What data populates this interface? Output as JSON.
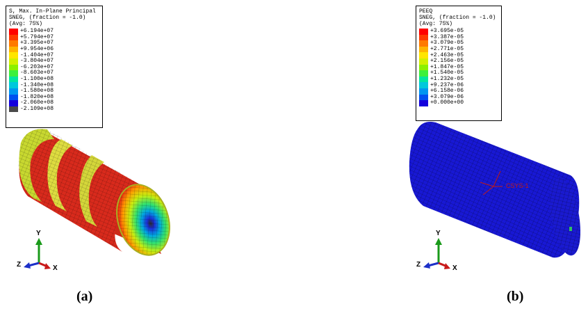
{
  "panel_a": {
    "legend": {
      "title_lines": [
        "S, Max. In-Plane Principal",
        "SNEG, (fraction = -1.0)",
        "(Avg: 75%)"
      ],
      "entries": [
        {
          "color": "#ff0000",
          "value": "+6.194e+07"
        },
        {
          "color": "#ff3a00",
          "value": "+5.794e+07"
        },
        {
          "color": "#ff7a00",
          "value": "+3.395e+07"
        },
        {
          "color": "#ffb400",
          "value": "+9.954e+06"
        },
        {
          "color": "#ffe600",
          "value": "-1.404e+07"
        },
        {
          "color": "#d2f000",
          "value": "-3.804e+07"
        },
        {
          "color": "#8cf000",
          "value": "-6.203e+07"
        },
        {
          "color": "#3cf03c",
          "value": "-8.603e+07"
        },
        {
          "color": "#00e6a0",
          "value": "-1.100e+08"
        },
        {
          "color": "#00c8dc",
          "value": "-1.340e+08"
        },
        {
          "color": "#0096f0",
          "value": "-1.580e+08"
        },
        {
          "color": "#0050f0",
          "value": "-1.820e+08"
        },
        {
          "color": "#1400dc",
          "value": "-2.060e+08"
        },
        {
          "color": "#4a4a4a",
          "value": "-2.109e+08"
        }
      ]
    },
    "triad": {
      "y": "Y",
      "z": "Z",
      "x": "X"
    },
    "caption": "(a)"
  },
  "panel_b": {
    "legend": {
      "title_lines": [
        "PEEQ",
        "SNEG, (fraction = -1.0)",
        "(Avg: 75%)"
      ],
      "entries": [
        {
          "color": "#ff0000",
          "value": "+3.695e-05"
        },
        {
          "color": "#ff3a00",
          "value": "+3.387e-05"
        },
        {
          "color": "#ff7a00",
          "value": "+3.079e-05"
        },
        {
          "color": "#ffb400",
          "value": "+2.771e-05"
        },
        {
          "color": "#ffe600",
          "value": "+2.463e-05"
        },
        {
          "color": "#d2f000",
          "value": "+2.156e-05"
        },
        {
          "color": "#8cf000",
          "value": "+1.847e-05"
        },
        {
          "color": "#3cf03c",
          "value": "+1.540e-05"
        },
        {
          "color": "#00e6a0",
          "value": "+1.232e-05"
        },
        {
          "color": "#00c8dc",
          "value": "+9.237e-06"
        },
        {
          "color": "#0096f0",
          "value": "+6.158e-06"
        },
        {
          "color": "#0050f0",
          "value": "+3.079e-06"
        },
        {
          "color": "#1400dc",
          "value": "+0.000e+00"
        }
      ]
    },
    "csys_label": "CSYS-1",
    "triad": {
      "y": "Y",
      "z": "Z",
      "x": "X"
    },
    "caption": "(b)"
  }
}
